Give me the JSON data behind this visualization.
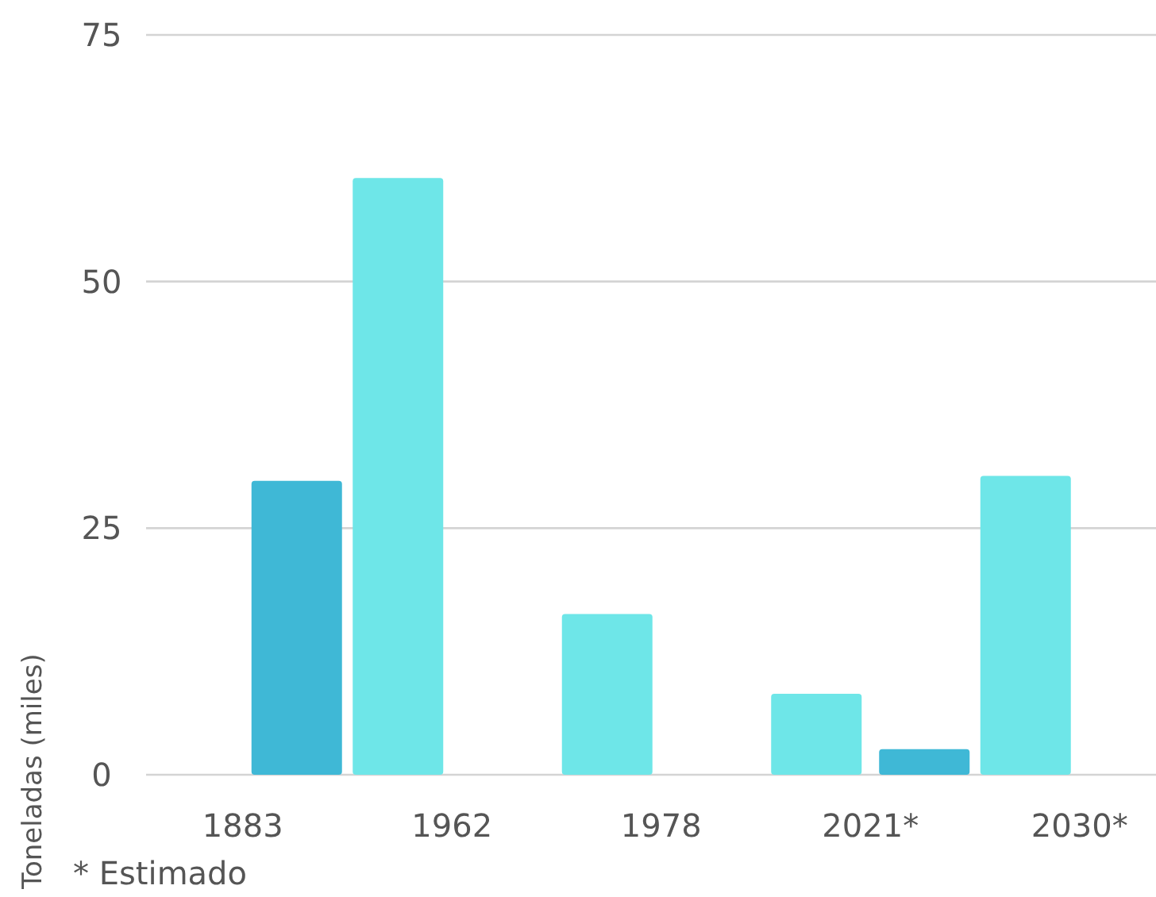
{
  "chart_data": {
    "type": "bar",
    "ylabel": "Toneladas (miles)",
    "annotations": [
      "* Estimado"
    ],
    "categories": [
      "1883",
      "1962",
      "1978",
      "2021*",
      "2030*"
    ],
    "series": [
      {
        "color": "#6ee6e8",
        "values": [
          null,
          60.5,
          16.3,
          8.2,
          30.3
        ]
      },
      {
        "color": "#3fb8d6",
        "values": [
          29.8,
          null,
          null,
          2.6,
          null
        ]
      }
    ],
    "ylim": [
      0,
      75
    ],
    "yticks": [
      0,
      25,
      50,
      75
    ],
    "grid": "y"
  }
}
